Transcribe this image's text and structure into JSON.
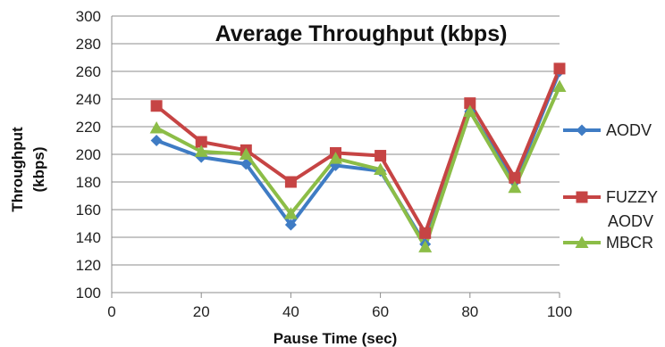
{
  "chart_data": {
    "type": "line",
    "title": "Average Throughput (kbps)",
    "xlabel": "Pause Time (sec)",
    "ylabel_lines": [
      "Throughput",
      "(kbps)"
    ],
    "xlim": [
      0,
      100
    ],
    "ylim": [
      100,
      300
    ],
    "xticks": [
      0,
      20,
      40,
      60,
      80,
      100
    ],
    "yticks": [
      100,
      120,
      140,
      160,
      180,
      200,
      220,
      240,
      260,
      280,
      300
    ],
    "grid": "horizontal",
    "legend_position": "right",
    "x": [
      10,
      20,
      30,
      40,
      50,
      60,
      70,
      80,
      90,
      100
    ],
    "series": [
      {
        "name": "AODV",
        "color": "#3f7cc4",
        "marker": "diamond",
        "values": [
          210,
          198,
          193,
          149,
          192,
          188,
          135,
          231,
          180,
          260
        ]
      },
      {
        "name": "FUZZY AODV",
        "name_lines": [
          "FUZZY",
          "AODV"
        ],
        "color": "#c64444",
        "marker": "square",
        "values": [
          235,
          209,
          203,
          180,
          201,
          199,
          143,
          237,
          183,
          262
        ]
      },
      {
        "name": "MBCR",
        "color": "#8cbd47",
        "marker": "triangle",
        "values": [
          219,
          202,
          200,
          157,
          197,
          189,
          133,
          231,
          176,
          249
        ]
      }
    ]
  }
}
